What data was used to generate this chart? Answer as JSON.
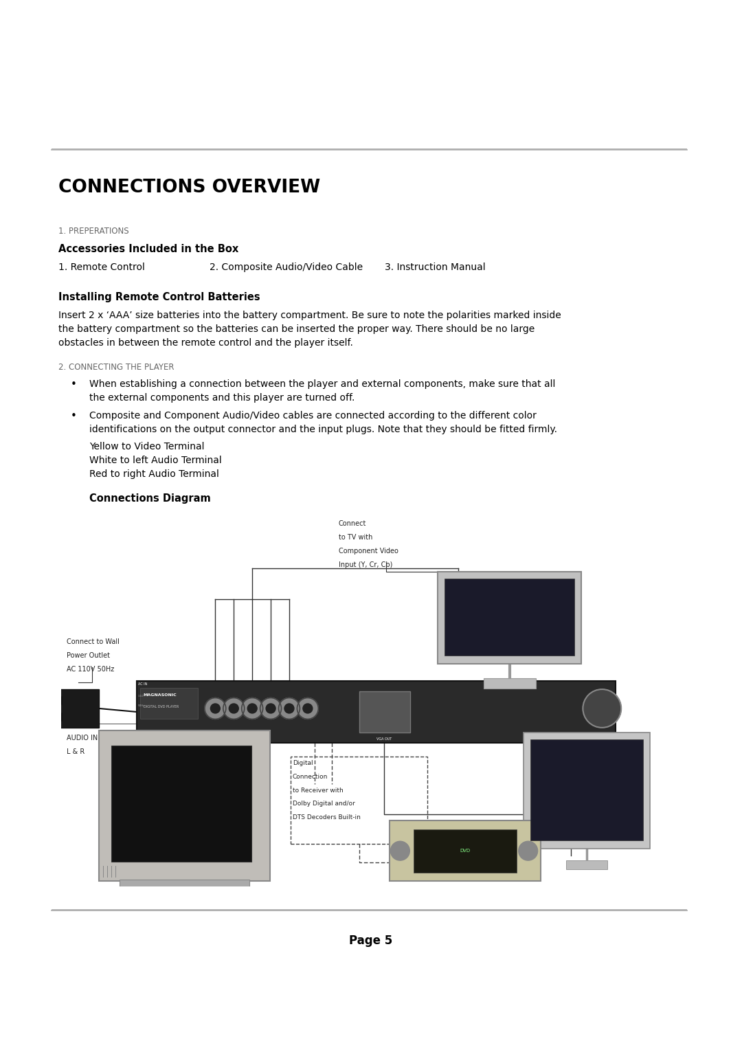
{
  "bg_color": "#ffffff",
  "title": "CONNECTIONS OVERVIEW",
  "section1_header": "1. PREPERATIONS",
  "section1_sub": "Accessories Included in the Box",
  "acc1": "1. Remote Control",
  "acc2": "2. Composite Audio/Video Cable",
  "acc3": "3. Instruction Manual",
  "batteries_header": "Installing Remote Control Batteries",
  "batteries_line1": "Insert 2 x ‘AAA’ size batteries into the battery compartment. Be sure to note the polarities marked inside",
  "batteries_line2": "the battery compartment so the batteries can be inserted the proper way. There should be no large",
  "batteries_line3": "obstacles in between the remote control and the player itself.",
  "section2_header": "2. CONNECTING THE PLAYER",
  "bullet1_line1": "When establishing a connection between the player and external components, make sure that all",
  "bullet1_line2": "the external components and this player are turned off.",
  "bullet2_line1": "Composite and Component Audio/Video cables are connected according to the different color",
  "bullet2_line2": "identifications on the output connector and the input plugs. Note that they should be fitted firmly.",
  "bullet2_line3": "Yellow to Video Terminal",
  "bullet2_line4": "White to left Audio Terminal",
  "bullet2_line5": "Red to right Audio Terminal",
  "connections_diagram_header": "Connections Diagram",
  "page_label": "Page 5",
  "text_color": "#000000",
  "line_color": "#aaaaaa",
  "fig_w": 10.8,
  "fig_h": 15.28,
  "dpi": 100
}
